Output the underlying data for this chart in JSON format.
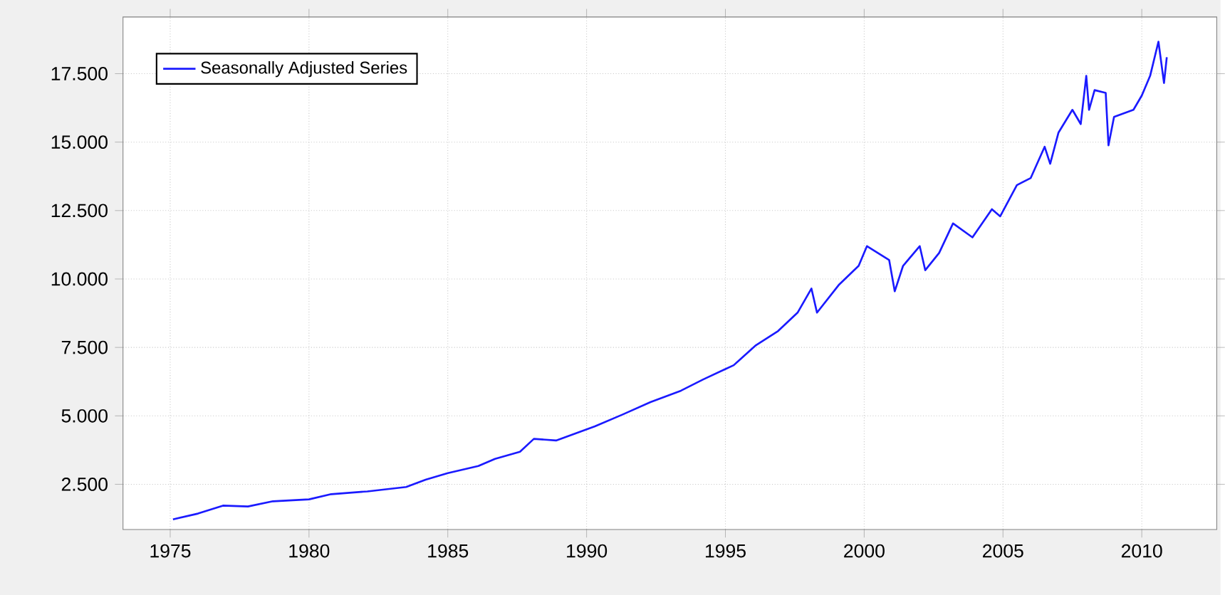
{
  "chart_data": {
    "type": "line",
    "legend": "top left",
    "grid": true,
    "line_style": "solid",
    "marker": "none",
    "xlim": [
      1973.3,
      2012.7
    ],
    "ylim": [
      850,
      19570
    ],
    "xticks": [
      1975,
      1980,
      1985,
      1990,
      1995,
      2000,
      2005,
      2010
    ],
    "yticks": [
      {
        "value": 2500,
        "label": "2.500"
      },
      {
        "value": 5000,
        "label": "5.000"
      },
      {
        "value": 7500,
        "label": "7.500"
      },
      {
        "value": 10000,
        "label": "10.000"
      },
      {
        "value": 12500,
        "label": "12.500"
      },
      {
        "value": 15000,
        "label": "15.000"
      },
      {
        "value": 17500,
        "label": "17.500"
      }
    ],
    "series": [
      {
        "name": "Seasonally Adjusted Series",
        "color": "#1a1aff",
        "x": [
          1975.1,
          1976,
          1976.9,
          1977.8,
          1978.7,
          1980,
          1980.8,
          1982.1,
          1983.5,
          1984.2,
          1985,
          1986.1,
          1986.7,
          1987.6,
          1988.1,
          1988.9,
          1990.3,
          1991.3,
          1992.3,
          1993.4,
          1994.2,
          1995.3,
          1996.1,
          1996.9,
          1997.6,
          1998.1,
          1998.3,
          1999.1,
          1999.8,
          2000.1,
          2000.9,
          2001.1,
          2001.4,
          2002,
          2002.2,
          2002.7,
          2003.2,
          2003.9,
          2004.6,
          2004.9,
          2005.5,
          2006,
          2006.5,
          2006.7,
          2007,
          2007.5,
          2007.8,
          2008,
          2008.1,
          2008.3,
          2008.7,
          2008.8,
          2009,
          2009.7,
          2010,
          2010.3,
          2010.6,
          2010.8,
          2010.9
        ],
        "values": [
          1220,
          1430,
          1720,
          1690,
          1880,
          1950,
          2140,
          2240,
          2400,
          2670,
          2910,
          3170,
          3430,
          3690,
          4160,
          4100,
          4620,
          5050,
          5500,
          5920,
          6330,
          6850,
          7580,
          8100,
          8770,
          9650,
          8770,
          9800,
          10480,
          11200,
          10690,
          9550,
          10480,
          11200,
          10320,
          10950,
          12030,
          11520,
          12550,
          12290,
          13430,
          13690,
          14830,
          14210,
          15350,
          16180,
          15660,
          17420,
          16180,
          16900,
          16800,
          14880,
          15920,
          16180,
          16700,
          17420,
          18670,
          17160,
          18100
        ]
      }
    ]
  }
}
